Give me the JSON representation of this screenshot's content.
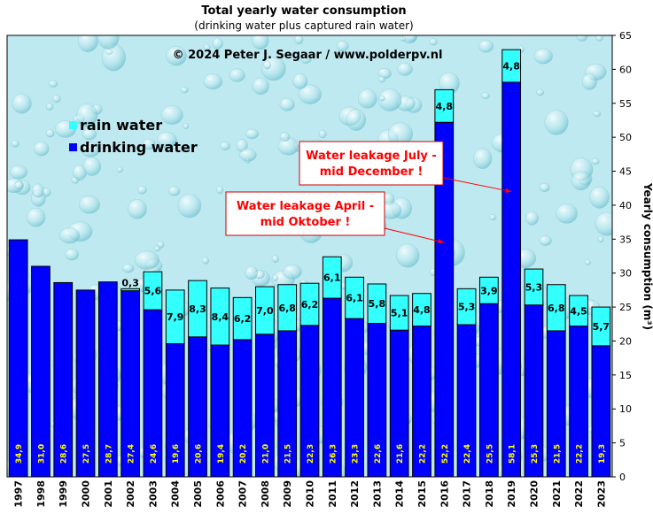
{
  "chart_data": {
    "type": "bar",
    "stacked": true,
    "title": "Total yearly water consumption",
    "subtitle": "(drinking  water plus captured rain  water)",
    "copyright": "© 2024  Peter J.  Segaar / www.polderpv.nl",
    "ylabel": "Yearly consumption (m³)",
    "xlabel": "",
    "ylim": [
      0,
      65
    ],
    "y_ticks": [
      0,
      5,
      10,
      15,
      20,
      25,
      30,
      35,
      40,
      45,
      50,
      55,
      60,
      65
    ],
    "grid": false,
    "legend_position": "top-left",
    "categories": [
      "1997",
      "1998",
      "1999",
      "2000",
      "2001",
      "2002",
      "2003",
      "2004",
      "2005",
      "2006",
      "2007",
      "2008",
      "2009",
      "2010",
      "2011",
      "2012",
      "2013",
      "2014",
      "2015",
      "2016",
      "2017",
      "2018",
      "2019",
      "2020",
      "2021",
      "2022",
      "2023"
    ],
    "series": [
      {
        "name": "drinking water",
        "color": "#0000ff",
        "values": [
          34.9,
          31.0,
          28.6,
          27.5,
          28.7,
          27.4,
          24.6,
          19.6,
          20.6,
          19.4,
          20.2,
          21.0,
          21.5,
          22.3,
          26.3,
          23.3,
          22.6,
          21.6,
          22.2,
          52.2,
          22.4,
          25.5,
          58.1,
          25.3,
          21.5,
          22.2,
          19.3
        ],
        "labels": [
          "34,9",
          "31,0",
          "28,6",
          "27,5",
          "28,7",
          "27,4",
          "24,6",
          "19,6",
          "20,6",
          "19,4",
          "20,2",
          "21,0",
          "21,5",
          "22,3",
          "26,3",
          "23,3",
          "22,6",
          "21,6",
          "22,2",
          "52,2",
          "22,4",
          "25,5",
          "58,1",
          "25,3",
          "21,5",
          "22,2",
          "19,3"
        ]
      },
      {
        "name": "rain water",
        "color": "#33ffff",
        "values": [
          0,
          0,
          0,
          0,
          0,
          0.3,
          5.6,
          7.9,
          8.3,
          8.4,
          6.2,
          7.0,
          6.8,
          6.2,
          6.1,
          6.1,
          5.8,
          5.1,
          4.8,
          4.8,
          5.3,
          3.9,
          4.8,
          5.3,
          6.8,
          4.5,
          5.7
        ],
        "labels": [
          "",
          "",
          "",
          "",
          "",
          "0,3",
          "5,6",
          "7,9",
          "8,3",
          "8,4",
          "6,2",
          "7,0",
          "6,8",
          "6,2",
          "6,1",
          "6,1",
          "5,8",
          "5,1",
          "4,8",
          "4,8",
          "5,3",
          "3,9",
          "4,8",
          "5,3",
          "6,8",
          "4,5",
          "5,7"
        ]
      }
    ],
    "annotations": [
      {
        "lines": [
          "Water leakage July -",
          "mid December !"
        ],
        "target_category": "2019",
        "target_value": 42
      },
      {
        "lines": [
          "Water leakage April -",
          "mid Oktober !"
        ],
        "target_category": "2016",
        "target_value": 34.5
      }
    ],
    "colors": {
      "plot_bg": "#bfe9f0",
      "annotation_text": "#ff0000",
      "bar_label_drinking": "#ffff00",
      "bar_label_rain": "#000000"
    }
  }
}
